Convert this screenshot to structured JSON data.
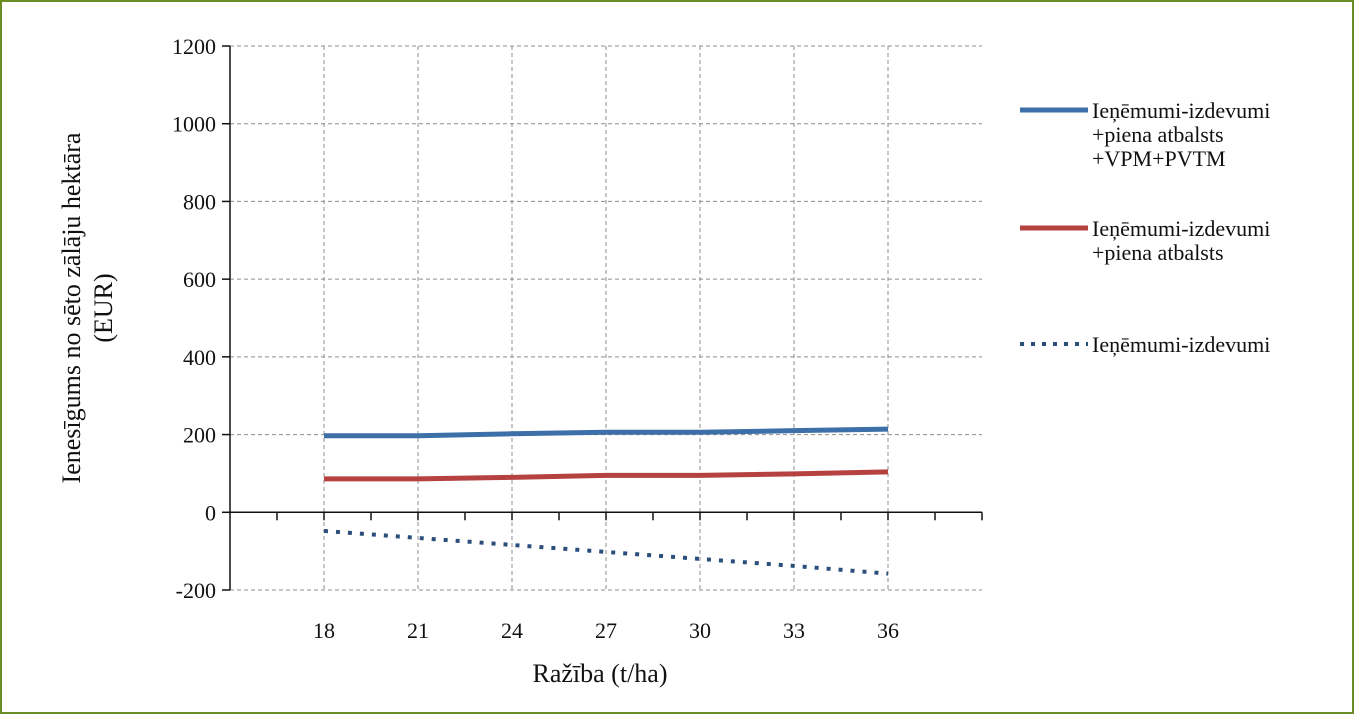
{
  "chart_data": {
    "type": "line",
    "title": "",
    "ylabel_lines": [
      "Ienesīgums no sēto zālāju hektāra",
      "(EUR)"
    ],
    "xlabel": "Ražība (t/ha)",
    "x": [
      18,
      21,
      24,
      27,
      30,
      33,
      36
    ],
    "xlim": [
      15,
      39
    ],
    "ylim": [
      -200,
      1200
    ],
    "yticks": [
      -200,
      0,
      200,
      400,
      600,
      800,
      1000,
      1200
    ],
    "grid": true,
    "legend_position": "right",
    "series": [
      {
        "name_lines": [
          "Ieņēmumi-izdevumi",
          "+piena atbalsts",
          "+VPM+PVTM"
        ],
        "values": [
          197,
          197,
          202,
          206,
          206,
          210,
          214
        ],
        "color": "#3d6fa8",
        "style": "solid"
      },
      {
        "name_lines": [
          "Ieņēmumi-izdevumi",
          "+piena atbalsts"
        ],
        "values": [
          86,
          86,
          90,
          95,
          95,
          99,
          104
        ],
        "color": "#b54140",
        "style": "solid"
      },
      {
        "name_lines": [
          "Ieņēmumi-izdevumi"
        ],
        "values": [
          -48,
          -66,
          -84,
          -102,
          -120,
          -138,
          -158
        ],
        "color": "#2b4f7c",
        "style": "dotted"
      }
    ]
  }
}
